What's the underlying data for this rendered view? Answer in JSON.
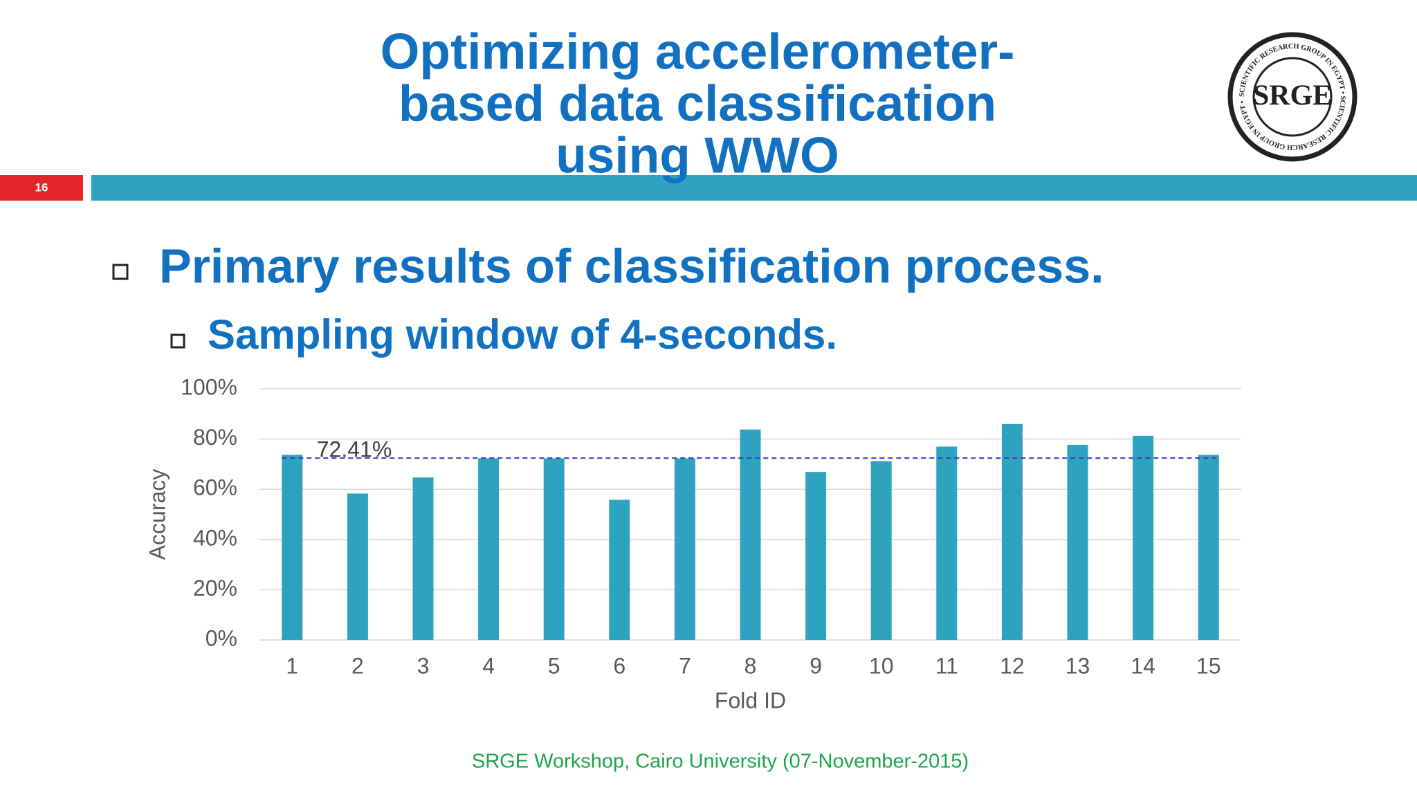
{
  "slide": {
    "title_lines": [
      "Optimizing accelerometer-",
      "based data classification",
      "using WWO"
    ],
    "slide_number": "16",
    "logo": {
      "text": "SRGE",
      "ring_text": "SCIENTIFIC RESEARCH GROUP IN EGYPT • SCIENTIFIC RESEARCH GROUP IN EGYPT •"
    },
    "bullets": [
      "Primary results of classification process.",
      "Sampling window of 4-seconds."
    ],
    "footer": "SRGE Workshop, Cairo University (07-November-2015)"
  },
  "chart_data": {
    "type": "bar",
    "x_label": "Fold ID",
    "y_label": "Accuracy",
    "categories": [
      "1",
      "2",
      "3",
      "4",
      "5",
      "6",
      "7",
      "8",
      "9",
      "10",
      "11",
      "12",
      "13",
      "14",
      "15"
    ],
    "values": [
      73.7,
      58.3,
      64.7,
      72.3,
      72.3,
      55.8,
      72.3,
      83.8,
      66.9,
      71.2,
      77.0,
      86.0,
      77.7,
      81.3,
      73.7
    ],
    "color": "#2ea3bf",
    "ylim": [
      0,
      100
    ],
    "yticks": [
      {
        "value": 0,
        "label": "0%"
      },
      {
        "value": 20,
        "label": "20%"
      },
      {
        "value": 40,
        "label": "40%"
      },
      {
        "value": 60,
        "label": "60%"
      },
      {
        "value": 80,
        "label": "80%"
      },
      {
        "value": 100,
        "label": "100%"
      }
    ],
    "grid": true,
    "reference_line": {
      "value": 72.41,
      "label": "72.41%",
      "color": "#3a3ab0"
    }
  }
}
